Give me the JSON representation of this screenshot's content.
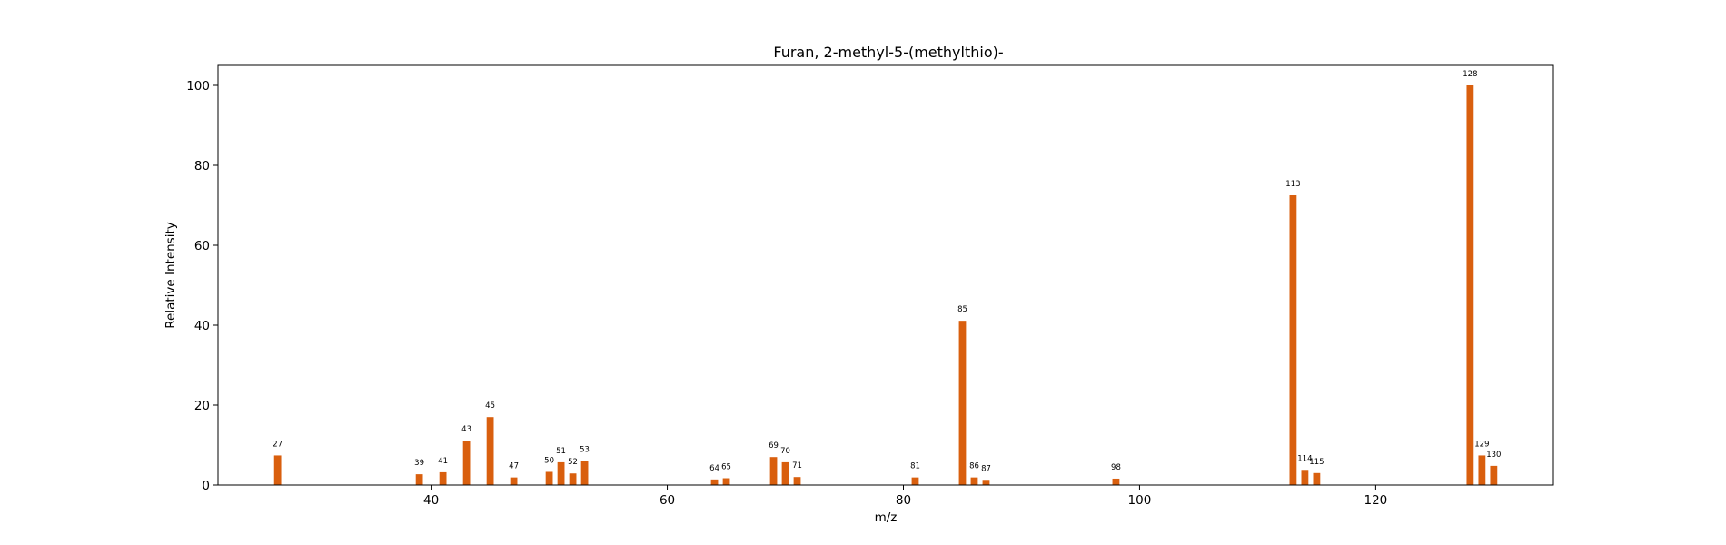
{
  "chart_data": {
    "type": "bar",
    "title": "Furan, 2-methyl-5-(methylthio)-",
    "xlabel": "m/z",
    "ylabel": "Relative Intensity",
    "xlim": [
      21.95,
      135.05
    ],
    "ylim": [
      0,
      105
    ],
    "xticks": [
      40,
      60,
      80,
      100,
      120
    ],
    "yticks": [
      0,
      20,
      40,
      60,
      80,
      100
    ],
    "grid": false,
    "bar_color": "#d95f0e",
    "bar_width": 0.6,
    "points": [
      {
        "x": 27,
        "y": 7.4
      },
      {
        "x": 39,
        "y": 2.7
      },
      {
        "x": 41,
        "y": 3.2
      },
      {
        "x": 43,
        "y": 11.1
      },
      {
        "x": 45,
        "y": 17.0
      },
      {
        "x": 47,
        "y": 1.9
      },
      {
        "x": 50,
        "y": 3.3
      },
      {
        "x": 51,
        "y": 5.7
      },
      {
        "x": 52,
        "y": 2.9
      },
      {
        "x": 53,
        "y": 6.0
      },
      {
        "x": 64,
        "y": 1.4
      },
      {
        "x": 65,
        "y": 1.7
      },
      {
        "x": 69,
        "y": 7.0
      },
      {
        "x": 70,
        "y": 5.7
      },
      {
        "x": 71,
        "y": 2.0
      },
      {
        "x": 81,
        "y": 1.9
      },
      {
        "x": 85,
        "y": 41.1
      },
      {
        "x": 86,
        "y": 1.9
      },
      {
        "x": 87,
        "y": 1.3
      },
      {
        "x": 98,
        "y": 1.6
      },
      {
        "x": 113,
        "y": 72.5
      },
      {
        "x": 114,
        "y": 3.8
      },
      {
        "x": 115,
        "y": 3.0
      },
      {
        "x": 128,
        "y": 100.0
      },
      {
        "x": 129,
        "y": 7.4
      },
      {
        "x": 130,
        "y": 4.8
      }
    ]
  }
}
